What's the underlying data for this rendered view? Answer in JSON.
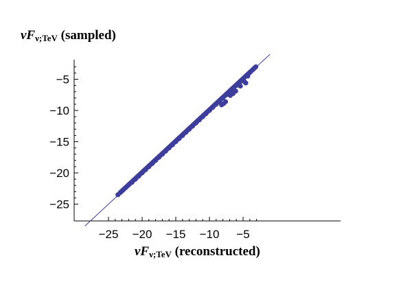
{
  "chart_data": {
    "type": "scatter",
    "ylabel": {
      "prefix": "νF",
      "subscript": "ν;TeV",
      "suffix": " (sampled)"
    },
    "xlabel": {
      "prefix": "νF",
      "subscript": "ν;TeV",
      "suffix": " (reconstructed)"
    },
    "xlim": [
      -28.5,
      -2.2
    ],
    "ylim": [
      -28.5,
      -2.2
    ],
    "x_ticks": [
      -25,
      -20,
      -15,
      -10,
      -5
    ],
    "y_ticks": [
      -25,
      -20,
      -15,
      -10,
      -5
    ],
    "x_tick_labels": [
      "−25",
      "−20",
      "−15",
      "−10",
      "−5"
    ],
    "y_tick_labels": [
      "−25",
      "−20",
      "−15",
      "−10",
      "−5"
    ],
    "grid": false,
    "reference_line": {
      "slope": 1,
      "intercept": 0
    },
    "series": [
      {
        "points": [
          [
            -23.6,
            -23.5
          ],
          [
            -22.9,
            -22.8
          ],
          [
            -22.4,
            -22.3
          ],
          [
            -22.0,
            -21.9
          ],
          [
            -21.5,
            -21.5
          ],
          [
            -21.0,
            -21.0
          ],
          [
            -20.5,
            -20.5
          ],
          [
            -20.0,
            -20.0
          ],
          [
            -19.5,
            -19.5
          ],
          [
            -19.0,
            -19.0
          ],
          [
            -18.5,
            -18.5
          ],
          [
            -18.0,
            -18.0
          ],
          [
            -17.5,
            -17.5
          ],
          [
            -17.0,
            -17.0
          ],
          [
            -16.5,
            -16.5
          ],
          [
            -16.0,
            -16.0
          ],
          [
            -15.5,
            -15.5
          ],
          [
            -15.0,
            -15.0
          ],
          [
            -14.5,
            -14.5
          ],
          [
            -14.0,
            -14.0
          ],
          [
            -13.5,
            -13.5
          ],
          [
            -13.0,
            -13.0
          ],
          [
            -12.5,
            -12.5
          ],
          [
            -12.0,
            -12.0
          ],
          [
            -11.5,
            -11.5
          ],
          [
            -11.0,
            -11.0
          ],
          [
            -10.5,
            -10.5
          ],
          [
            -10.0,
            -10.0
          ],
          [
            -9.5,
            -9.5
          ],
          [
            -9.0,
            -9.0
          ],
          [
            -8.5,
            -8.5
          ],
          [
            -8.0,
            -8.0
          ],
          [
            -7.5,
            -7.5
          ],
          [
            -7.0,
            -7.0
          ],
          [
            -6.5,
            -6.5
          ],
          [
            -6.0,
            -6.0
          ],
          [
            -5.5,
            -5.5
          ],
          [
            -5.0,
            -5.0
          ],
          [
            -4.5,
            -4.4
          ],
          [
            -4.0,
            -3.9
          ],
          [
            -3.5,
            -3.4
          ],
          [
            -3.1,
            -3.0
          ],
          [
            -8.2,
            -9.1
          ],
          [
            -7.6,
            -8.6
          ],
          [
            -6.9,
            -7.6
          ],
          [
            -6.1,
            -6.9
          ],
          [
            -5.4,
            -6.1
          ],
          [
            -4.8,
            -5.4
          ],
          [
            -4.3,
            -4.5
          ],
          [
            -4.6,
            -5.6
          ],
          [
            -7.9,
            -8.9
          ],
          [
            -6.5,
            -7.3
          ]
        ]
      }
    ]
  }
}
